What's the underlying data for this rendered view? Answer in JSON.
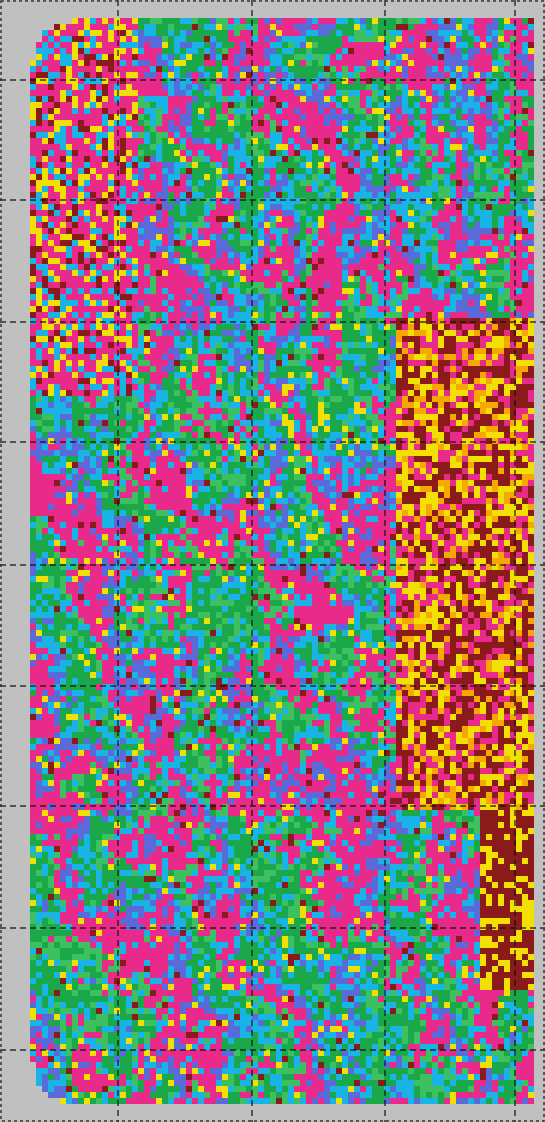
{
  "map": {
    "kind": "classified raster map",
    "colors": {
      "background": "#c0c0c0",
      "frame": "#333333",
      "grid": "#111111",
      "magenta": "#e82b8a",
      "cyan": "#1ab3e6",
      "blue": "#5a6ad8",
      "green": "#1aa84a",
      "light_green": "#3cc060",
      "yellow": "#f2e000",
      "orange": "#f5a800",
      "dark_red": "#8b1a1a",
      "white": "#e0e0e0"
    },
    "legend": [],
    "grid": {
      "dashed": true,
      "columns": 4,
      "rows": 9
    }
  }
}
